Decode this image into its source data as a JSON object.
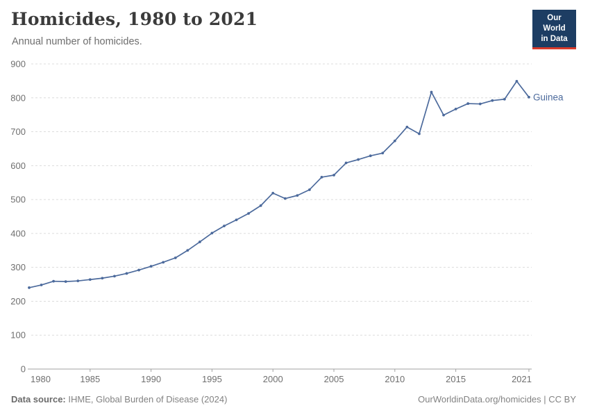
{
  "header": {
    "title": "Homicides, 1980 to 2021",
    "subtitle": "Annual number of homicides.",
    "logo": {
      "line1": "Our World",
      "line2": "in Data",
      "bg_color": "#1d3d63",
      "accent_color": "#d93a2b"
    }
  },
  "chart_data": {
    "type": "line",
    "title": "Homicides, 1980 to 2021",
    "subtitle": "Annual number of homicides.",
    "xlabel": "",
    "ylabel": "Annual number of homicides",
    "xlim": [
      1980,
      2021
    ],
    "ylim": [
      0,
      900
    ],
    "x_ticks": [
      1980,
      1985,
      1990,
      1995,
      2000,
      2005,
      2010,
      2015,
      2021
    ],
    "y_ticks": [
      0,
      100,
      200,
      300,
      400,
      500,
      600,
      700,
      800,
      900
    ],
    "grid": "horizontal-dashed",
    "legend_position": "end-of-line",
    "colors": {
      "line": "#4C6A9C",
      "grid": "#dcdcdc",
      "axis": "#a0a0a0",
      "tick_text": "#6f6f6f"
    },
    "series": [
      {
        "name": "Guinea",
        "color": "#4C6A9C",
        "x": [
          1980,
          1981,
          1982,
          1983,
          1984,
          1985,
          1986,
          1987,
          1988,
          1989,
          1990,
          1991,
          1992,
          1993,
          1994,
          1995,
          1996,
          1997,
          1998,
          1999,
          2000,
          2001,
          2002,
          2003,
          2004,
          2005,
          2006,
          2007,
          2008,
          2009,
          2010,
          2011,
          2012,
          2013,
          2014,
          2015,
          2016,
          2017,
          2018,
          2019,
          2020,
          2021
        ],
        "values": [
          240,
          248,
          259,
          258,
          260,
          264,
          268,
          274,
          282,
          292,
          303,
          315,
          328,
          350,
          375,
          401,
          422,
          440,
          459,
          482,
          519,
          503,
          512,
          529,
          566,
          572,
          608,
          618,
          629,
          637,
          673,
          714,
          694,
          817,
          749,
          767,
          783,
          782,
          792,
          796,
          849,
          802
        ]
      }
    ]
  },
  "footer": {
    "source_label": "Data source:",
    "source_text": " IHME, Global Burden of Disease (2024)",
    "credit": "OurWorldinData.org/homicides | CC BY"
  }
}
